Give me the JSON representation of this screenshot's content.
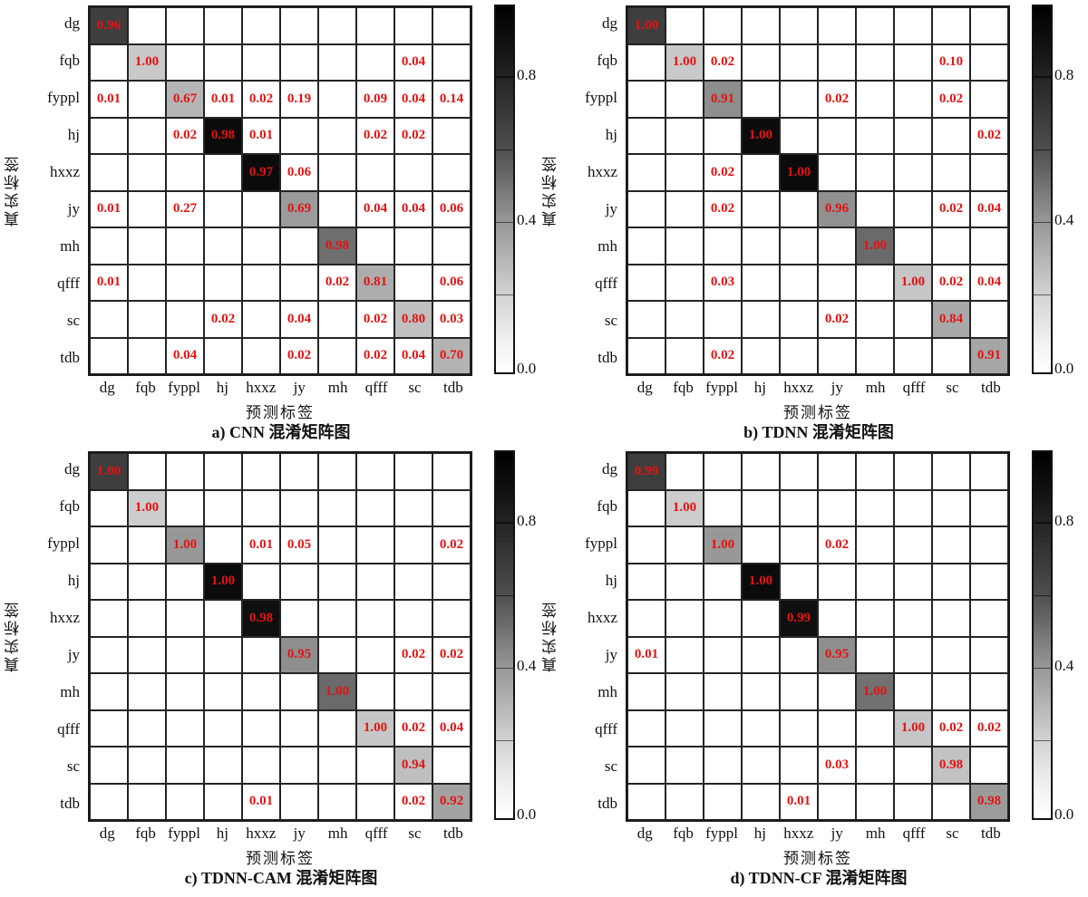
{
  "figure": {
    "ylabel": "真实标签",
    "xlabel": "预测标签",
    "labels": [
      "dg",
      "fqb",
      "fyppl",
      "hj",
      "hxxz",
      "jy",
      "mh",
      "qfff",
      "sc",
      "tdb"
    ],
    "value_color": "#e51212",
    "grid_line_color": "#242424",
    "colorbar": {
      "ticks": [
        "0.8",
        "0.4",
        "0.0"
      ],
      "top_color": "#000000",
      "bottom_color": "#ffffff"
    },
    "panels": [
      {
        "caption": "a)  CNN 混淆矩阵图",
        "diag_colors": [
          "#3e3e3e",
          "#c9c9c9",
          "#b5b5b5",
          "#0b0b0b",
          "#0b0b0b",
          "#9b9b9b",
          "#6f6f6f",
          "#adadad",
          "#c0c0c0",
          "#b3b3b3"
        ]
      },
      {
        "caption": "b)  TDNN 混淆矩阵图",
        "diag_colors": [
          "#3e3e3e",
          "#c9c9c9",
          "#8e8e8e",
          "#0b0b0b",
          "#0b0b0b",
          "#909090",
          "#6a6a6a",
          "#c6c6c6",
          "#a8a8a8",
          "#a6a6a6"
        ]
      },
      {
        "caption": "c)  TDNN-CAM 混淆矩阵图",
        "diag_colors": [
          "#3e3e3e",
          "#cdcdcd",
          "#979797",
          "#0b0b0b",
          "#0f0f0f",
          "#8e8e8e",
          "#6a6a6a",
          "#c6c6c6",
          "#bfbfbf",
          "#a2a2a2"
        ]
      },
      {
        "caption": "d)  TDNN-CF 混淆矩阵图",
        "diag_colors": [
          "#3e3e3e",
          "#cdcdcd",
          "#989898",
          "#0b0b0b",
          "#0f0f0f",
          "#8e8e8e",
          "#717171",
          "#c6c6c6",
          "#c2c2c2",
          "#9b9b9b"
        ]
      }
    ]
  },
  "chart_data": [
    {
      "type": "heatmap",
      "title": "a) CNN 混淆矩阵图",
      "xlabel": "预测标签",
      "ylabel": "真实标签",
      "x_categories": [
        "dg",
        "fqb",
        "fyppl",
        "hj",
        "hxxz",
        "jy",
        "mh",
        "qfff",
        "sc",
        "tdb"
      ],
      "y_categories": [
        "dg",
        "fqb",
        "fyppl",
        "hj",
        "hxxz",
        "jy",
        "mh",
        "qfff",
        "sc",
        "tdb"
      ],
      "matrix": [
        [
          0.96,
          0,
          0,
          0,
          0,
          0,
          0,
          0,
          0,
          0
        ],
        [
          0,
          1.0,
          0,
          0,
          0,
          0,
          0,
          0,
          0.04,
          0
        ],
        [
          0.01,
          0,
          0.67,
          0.01,
          0.02,
          0.19,
          0,
          0.09,
          0.04,
          0.14
        ],
        [
          0,
          0,
          0.02,
          0.98,
          0.01,
          0,
          0,
          0.02,
          0.02,
          0
        ],
        [
          0,
          0,
          0,
          0,
          0.97,
          0.06,
          0,
          0,
          0,
          0
        ],
        [
          0.01,
          0,
          0.27,
          0,
          0,
          0.69,
          0,
          0.04,
          0.04,
          0.06
        ],
        [
          0,
          0,
          0,
          0,
          0,
          0,
          0.98,
          0,
          0,
          0
        ],
        [
          0.01,
          0,
          0,
          0,
          0,
          0,
          0.02,
          0.81,
          0,
          0.06
        ],
        [
          0,
          0,
          0,
          0.02,
          0,
          0.04,
          0,
          0.02,
          0.8,
          0.03
        ],
        [
          0,
          0,
          0.04,
          0,
          0,
          0.02,
          0,
          0.02,
          0.04,
          0.7
        ]
      ],
      "colorbar_range": [
        0.0,
        1.0
      ],
      "colorbar_ticks": [
        0.8,
        0.4,
        0.0
      ],
      "legend_position": "right"
    },
    {
      "type": "heatmap",
      "title": "b) TDNN 混淆矩阵图",
      "xlabel": "预测标签",
      "ylabel": "真实标签",
      "x_categories": [
        "dg",
        "fqb",
        "fyppl",
        "hj",
        "hxxz",
        "jy",
        "mh",
        "qfff",
        "sc",
        "tdb"
      ],
      "y_categories": [
        "dg",
        "fqb",
        "fyppl",
        "hj",
        "hxxz",
        "jy",
        "mh",
        "qfff",
        "sc",
        "tdb"
      ],
      "matrix": [
        [
          1.0,
          0,
          0,
          0,
          0,
          0,
          0,
          0,
          0,
          0
        ],
        [
          0,
          1.0,
          0.02,
          0,
          0,
          0,
          0,
          0,
          0.1,
          0
        ],
        [
          0,
          0,
          0.91,
          0,
          0,
          0.02,
          0,
          0,
          0.02,
          0
        ],
        [
          0,
          0,
          0,
          1.0,
          0,
          0,
          0,
          0,
          0,
          0.02
        ],
        [
          0,
          0,
          0.02,
          0,
          1.0,
          0,
          0,
          0,
          0,
          0
        ],
        [
          0,
          0,
          0.02,
          0,
          0,
          0.96,
          0,
          0,
          0.02,
          0.04
        ],
        [
          0,
          0,
          0,
          0,
          0,
          0,
          1.0,
          0,
          0,
          0
        ],
        [
          0,
          0,
          0.03,
          0,
          0,
          0,
          0,
          1.0,
          0.02,
          0.04
        ],
        [
          0,
          0,
          0,
          0,
          0,
          0.02,
          0,
          0,
          0.84,
          0
        ],
        [
          0,
          0,
          0.02,
          0,
          0,
          0,
          0,
          0,
          0,
          0.91
        ]
      ],
      "colorbar_range": [
        0.0,
        1.0
      ],
      "colorbar_ticks": [
        0.8,
        0.4,
        0.0
      ],
      "legend_position": "right"
    },
    {
      "type": "heatmap",
      "title": "c) TDNN-CAM 混淆矩阵图",
      "xlabel": "预测标签",
      "ylabel": "真实标签",
      "x_categories": [
        "dg",
        "fqb",
        "fyppl",
        "hj",
        "hxxz",
        "jy",
        "mh",
        "qfff",
        "sc",
        "tdb"
      ],
      "y_categories": [
        "dg",
        "fqb",
        "fyppl",
        "hj",
        "hxxz",
        "jy",
        "mh",
        "qfff",
        "sc",
        "tdb"
      ],
      "matrix": [
        [
          1.0,
          0,
          0,
          0,
          0,
          0,
          0,
          0,
          0,
          0
        ],
        [
          0,
          1.0,
          0,
          0,
          0,
          0,
          0,
          0,
          0,
          0
        ],
        [
          0,
          0,
          1.0,
          0,
          0.01,
          0.05,
          0,
          0,
          0,
          0.02
        ],
        [
          0,
          0,
          0,
          1.0,
          0,
          0,
          0,
          0,
          0,
          0
        ],
        [
          0,
          0,
          0,
          0,
          0.98,
          0,
          0,
          0,
          0,
          0
        ],
        [
          0,
          0,
          0,
          0,
          0,
          0.95,
          0,
          0,
          0.02,
          0.02
        ],
        [
          0,
          0,
          0,
          0,
          0,
          0,
          1.0,
          0,
          0,
          0
        ],
        [
          0,
          0,
          0,
          0,
          0,
          0,
          0,
          1.0,
          0.02,
          0.04
        ],
        [
          0,
          0,
          0,
          0,
          0,
          0,
          0,
          0,
          0.94,
          0
        ],
        [
          0,
          0,
          0,
          0,
          0.01,
          0,
          0,
          0,
          0.02,
          0.92
        ]
      ],
      "colorbar_range": [
        0.0,
        1.0
      ],
      "colorbar_ticks": [
        0.8,
        0.4,
        0.0
      ],
      "legend_position": "right"
    },
    {
      "type": "heatmap",
      "title": "d) TDNN-CF 混淆矩阵图",
      "xlabel": "预测标签",
      "ylabel": "真实标签",
      "x_categories": [
        "dg",
        "fqb",
        "fyppl",
        "hj",
        "hxxz",
        "jy",
        "mh",
        "qfff",
        "sc",
        "tdb"
      ],
      "y_categories": [
        "dg",
        "fqb",
        "fyppl",
        "hj",
        "hxxz",
        "jy",
        "mh",
        "qfff",
        "sc",
        "tdb"
      ],
      "matrix": [
        [
          0.99,
          0,
          0,
          0,
          0,
          0,
          0,
          0,
          0,
          0
        ],
        [
          0,
          1.0,
          0,
          0,
          0,
          0,
          0,
          0,
          0,
          0
        ],
        [
          0,
          0,
          1.0,
          0,
          0,
          0.02,
          0,
          0,
          0,
          0
        ],
        [
          0,
          0,
          0,
          1.0,
          0,
          0,
          0,
          0,
          0,
          0
        ],
        [
          0,
          0,
          0,
          0,
          0.99,
          0,
          0,
          0,
          0,
          0
        ],
        [
          0.01,
          0,
          0,
          0,
          0,
          0.95,
          0,
          0,
          0,
          0
        ],
        [
          0,
          0,
          0,
          0,
          0,
          0,
          1.0,
          0,
          0,
          0
        ],
        [
          0,
          0,
          0,
          0,
          0,
          0,
          0,
          1.0,
          0.02,
          0.02
        ],
        [
          0,
          0,
          0,
          0,
          0,
          0.03,
          0,
          0,
          0.98,
          0
        ],
        [
          0,
          0,
          0,
          0,
          0.01,
          0,
          0,
          0,
          0,
          0.98
        ]
      ],
      "colorbar_range": [
        0.0,
        1.0
      ],
      "colorbar_ticks": [
        0.8,
        0.4,
        0.0
      ],
      "legend_position": "right"
    }
  ]
}
